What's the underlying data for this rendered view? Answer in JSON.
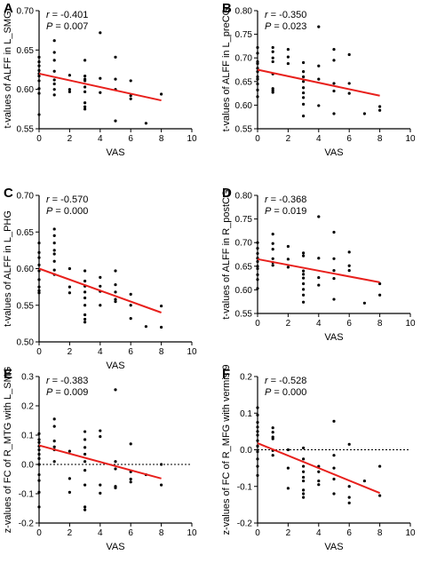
{
  "chart_data": [
    {
      "letter": "A",
      "type": "scatter",
      "xlabel": "VAS",
      "ylabel": "t-values of ALFF in L_SMG",
      "xlim": [
        0,
        10
      ],
      "ylim": [
        0.55,
        0.7
      ],
      "xticks": [
        "0",
        "2",
        "4",
        "6",
        "8",
        "10"
      ],
      "yticks": [
        "0.55",
        "0.60",
        "0.65",
        "0.70"
      ],
      "r_label": "r",
      "r_text": "= -0.401",
      "p_label": "P",
      "p_text": "= 0.007",
      "line": {
        "x": [
          0,
          8
        ],
        "y": [
          0.62,
          0.586
        ],
        "color": "#e8201c"
      },
      "zero_line": null,
      "points": [
        [
          0,
          0.641
        ],
        [
          0,
          0.635
        ],
        [
          0,
          0.63
        ],
        [
          0,
          0.624
        ],
        [
          0,
          0.62
        ],
        [
          0,
          0.617
        ],
        [
          0,
          0.611
        ],
        [
          0,
          0.601
        ],
        [
          0,
          0.595
        ],
        [
          0,
          0.568
        ],
        [
          1,
          0.662
        ],
        [
          1,
          0.647
        ],
        [
          1,
          0.637
        ],
        [
          1,
          0.623
        ],
        [
          1,
          0.612
        ],
        [
          1,
          0.607
        ],
        [
          1,
          0.6
        ],
        [
          1,
          0.593
        ],
        [
          2,
          0.618
        ],
        [
          2,
          0.6
        ],
        [
          2,
          0.597
        ],
        [
          3,
          0.637
        ],
        [
          3,
          0.617
        ],
        [
          3,
          0.613
        ],
        [
          3,
          0.611
        ],
        [
          3,
          0.603
        ],
        [
          3,
          0.597
        ],
        [
          3,
          0.583
        ],
        [
          3,
          0.578
        ],
        [
          3,
          0.575
        ],
        [
          4,
          0.672
        ],
        [
          4,
          0.614
        ],
        [
          4,
          0.596
        ],
        [
          5,
          0.641
        ],
        [
          5,
          0.613
        ],
        [
          5,
          0.6
        ],
        [
          5,
          0.56
        ],
        [
          6,
          0.611
        ],
        [
          6,
          0.592
        ],
        [
          6,
          0.588
        ],
        [
          7,
          0.557
        ],
        [
          8,
          0.594
        ]
      ]
    },
    {
      "letter": "B",
      "type": "scatter",
      "xlabel": "VAS",
      "ylabel": "t-values of ALFF in L_preCG",
      "xlim": [
        0,
        10
      ],
      "ylim": [
        0.55,
        0.8
      ],
      "xticks": [
        "0",
        "2",
        "4",
        "6",
        "8",
        "10"
      ],
      "yticks": [
        "0.55",
        "0.60",
        "0.65",
        "0.70",
        "0.75",
        "0.80"
      ],
      "r_label": "r",
      "r_text": "= -0.350",
      "p_label": "P",
      "p_text": "= 0.023",
      "line": {
        "x": [
          0,
          8
        ],
        "y": [
          0.675,
          0.62
        ],
        "color": "#e8201c"
      },
      "zero_line": null,
      "points": [
        [
          0,
          0.722
        ],
        [
          0,
          0.71
        ],
        [
          0,
          0.692
        ],
        [
          0,
          0.688
        ],
        [
          0,
          0.678
        ],
        [
          0,
          0.671
        ],
        [
          0,
          0.66
        ],
        [
          0,
          0.655
        ],
        [
          0,
          0.645
        ],
        [
          0,
          0.632
        ],
        [
          0,
          0.618
        ],
        [
          1,
          0.722
        ],
        [
          1,
          0.713
        ],
        [
          1,
          0.7
        ],
        [
          1,
          0.692
        ],
        [
          1,
          0.666
        ],
        [
          1,
          0.635
        ],
        [
          1,
          0.631
        ],
        [
          1,
          0.627
        ],
        [
          2,
          0.718
        ],
        [
          2,
          0.702
        ],
        [
          2,
          0.688
        ],
        [
          3,
          0.69
        ],
        [
          3,
          0.671
        ],
        [
          3,
          0.66
        ],
        [
          3,
          0.65
        ],
        [
          3,
          0.637
        ],
        [
          3,
          0.626
        ],
        [
          3,
          0.616
        ],
        [
          3,
          0.602
        ],
        [
          3,
          0.577
        ],
        [
          4,
          0.766
        ],
        [
          4,
          0.683
        ],
        [
          4,
          0.655
        ],
        [
          4,
          0.599
        ],
        [
          5,
          0.718
        ],
        [
          5,
          0.695
        ],
        [
          5,
          0.646
        ],
        [
          5,
          0.63
        ],
        [
          5,
          0.582
        ],
        [
          6,
          0.707
        ],
        [
          6,
          0.646
        ],
        [
          6,
          0.625
        ],
        [
          7,
          0.582
        ],
        [
          8,
          0.597
        ],
        [
          8,
          0.589
        ]
      ]
    },
    {
      "letter": "C",
      "type": "scatter",
      "xlabel": "VAS",
      "ylabel": "t-values of ALFF in L_PHG",
      "xlim": [
        0,
        10
      ],
      "ylim": [
        0.5,
        0.7
      ],
      "xticks": [
        "0",
        "2",
        "4",
        "6",
        "8",
        "10"
      ],
      "yticks": [
        "0.50",
        "0.55",
        "0.60",
        "0.65",
        "0.70"
      ],
      "r_label": "r",
      "r_text": "= -0.570",
      "p_label": "P",
      "p_text": "= 0.000",
      "line": {
        "x": [
          0,
          8
        ],
        "y": [
          0.6,
          0.54
        ],
        "color": "#e8201c"
      },
      "zero_line": null,
      "points": [
        [
          0,
          0.635
        ],
        [
          0,
          0.622
        ],
        [
          0,
          0.615
        ],
        [
          0,
          0.605
        ],
        [
          0,
          0.597
        ],
        [
          0,
          0.585
        ],
        [
          0,
          0.575
        ],
        [
          0,
          0.57
        ],
        [
          0,
          0.567
        ],
        [
          1,
          0.654
        ],
        [
          1,
          0.645
        ],
        [
          1,
          0.635
        ],
        [
          1,
          0.625
        ],
        [
          1,
          0.62
        ],
        [
          1,
          0.61
        ],
        [
          1,
          0.598
        ],
        [
          1,
          0.592
        ],
        [
          2,
          0.6
        ],
        [
          2,
          0.575
        ],
        [
          2,
          0.567
        ],
        [
          3,
          0.597
        ],
        [
          3,
          0.583
        ],
        [
          3,
          0.576
        ],
        [
          3,
          0.568
        ],
        [
          3,
          0.56
        ],
        [
          3,
          0.55
        ],
        [
          3,
          0.537
        ],
        [
          3,
          0.531
        ],
        [
          3,
          0.527
        ],
        [
          4,
          0.588
        ],
        [
          4,
          0.576
        ],
        [
          4,
          0.569
        ],
        [
          4,
          0.55
        ],
        [
          5,
          0.597
        ],
        [
          5,
          0.578
        ],
        [
          5,
          0.568
        ],
        [
          5,
          0.558
        ],
        [
          5,
          0.555
        ],
        [
          6,
          0.565
        ],
        [
          6,
          0.55
        ],
        [
          6,
          0.532
        ],
        [
          7,
          0.521
        ],
        [
          8,
          0.549
        ],
        [
          8,
          0.52
        ]
      ]
    },
    {
      "letter": "D",
      "type": "scatter",
      "xlabel": "VAS",
      "ylabel": "t-values of ALFF in R_postCG",
      "xlim": [
        0,
        10
      ],
      "ylim": [
        0.55,
        0.8
      ],
      "xticks": [
        "0",
        "2",
        "4",
        "6",
        "8",
        "10"
      ],
      "yticks": [
        "0.55",
        "0.60",
        "0.65",
        "0.70",
        "0.75",
        "0.80"
      ],
      "r_label": "r",
      "r_text": "= -0.368",
      "p_label": "P",
      "p_text": "= 0.019",
      "line": {
        "x": [
          0,
          8
        ],
        "y": [
          0.665,
          0.616
        ],
        "color": "#e8201c"
      },
      "zero_line": null,
      "points": [
        [
          0,
          0.7
        ],
        [
          0,
          0.688
        ],
        [
          0,
          0.677
        ],
        [
          0,
          0.667
        ],
        [
          0,
          0.66
        ],
        [
          0,
          0.65
        ],
        [
          0,
          0.645
        ],
        [
          0,
          0.632
        ],
        [
          0,
          0.622
        ],
        [
          0,
          0.603
        ],
        [
          1,
          0.718
        ],
        [
          1,
          0.698
        ],
        [
          1,
          0.686
        ],
        [
          1,
          0.666
        ],
        [
          1,
          0.658
        ],
        [
          1,
          0.652
        ],
        [
          2,
          0.692
        ],
        [
          2,
          0.665
        ],
        [
          2,
          0.648
        ],
        [
          3,
          0.678
        ],
        [
          3,
          0.672
        ],
        [
          3,
          0.64
        ],
        [
          3,
          0.633
        ],
        [
          3,
          0.625
        ],
        [
          3,
          0.613
        ],
        [
          3,
          0.601
        ],
        [
          3,
          0.589
        ],
        [
          3,
          0.574
        ],
        [
          4,
          0.755
        ],
        [
          4,
          0.667
        ],
        [
          4,
          0.626
        ],
        [
          4,
          0.61
        ],
        [
          5,
          0.722
        ],
        [
          5,
          0.666
        ],
        [
          5,
          0.641
        ],
        [
          5,
          0.624
        ],
        [
          5,
          0.58
        ],
        [
          6,
          0.68
        ],
        [
          6,
          0.651
        ],
        [
          6,
          0.641
        ],
        [
          7,
          0.572
        ],
        [
          8,
          0.613
        ],
        [
          8,
          0.589
        ]
      ]
    },
    {
      "letter": "E",
      "type": "scatter",
      "xlabel": "VAS",
      "ylabel": "z-values of FC of R_MTG with L_SMG",
      "xlim": [
        0,
        10
      ],
      "ylim": [
        -0.2,
        0.3
      ],
      "xticks": [
        "0",
        "2",
        "4",
        "6",
        "8",
        "10"
      ],
      "yticks": [
        "-0.2",
        "-0.1",
        "0.0",
        "0.1",
        "0.2",
        "0.3"
      ],
      "r_label": "r",
      "r_text": "= -0.383",
      "p_label": "P",
      "p_text": "= 0.009",
      "line": {
        "x": [
          0,
          8
        ],
        "y": [
          0.065,
          -0.048
        ],
        "color": "#e8201c"
      },
      "zero_line": 0,
      "points": [
        [
          0,
          0.105
        ],
        [
          0,
          0.085
        ],
        [
          0,
          0.075
        ],
        [
          0,
          0.062
        ],
        [
          0,
          0.05
        ],
        [
          0,
          0.035
        ],
        [
          0,
          0.02
        ],
        [
          0,
          0.0
        ],
        [
          0,
          -0.035
        ],
        [
          0,
          -0.055
        ],
        [
          0,
          -0.095
        ],
        [
          0,
          -0.145
        ],
        [
          1,
          0.155
        ],
        [
          1,
          0.13
        ],
        [
          1,
          0.08
        ],
        [
          1,
          0.06
        ],
        [
          1,
          0.05
        ],
        [
          1,
          0.01
        ],
        [
          2,
          0.045
        ],
        [
          2,
          -0.048
        ],
        [
          2,
          -0.095
        ],
        [
          3,
          0.112
        ],
        [
          3,
          0.085
        ],
        [
          3,
          0.058
        ],
        [
          3,
          0.035
        ],
        [
          3,
          0.01
        ],
        [
          3,
          -0.02
        ],
        [
          3,
          -0.07
        ],
        [
          3,
          -0.145
        ],
        [
          3,
          -0.155
        ],
        [
          4,
          0.115
        ],
        [
          4,
          0.095
        ],
        [
          4,
          -0.07
        ],
        [
          4,
          -0.098
        ],
        [
          5,
          0.255
        ],
        [
          5,
          0.01
        ],
        [
          5,
          -0.015
        ],
        [
          5,
          -0.075
        ],
        [
          5,
          -0.08
        ],
        [
          6,
          0.07
        ],
        [
          6,
          -0.025
        ],
        [
          6,
          -0.05
        ],
        [
          6,
          -0.06
        ],
        [
          7,
          -0.035
        ],
        [
          8,
          0.0
        ],
        [
          8,
          -0.07
        ]
      ]
    },
    {
      "letter": "F",
      "type": "scatter",
      "xlabel": "VAS",
      "ylabel": "z-values of FC of R_MFG with vermis 9",
      "xlim": [
        0,
        10
      ],
      "ylim": [
        -0.2,
        0.2
      ],
      "xticks": [
        "0",
        "2",
        "4",
        "6",
        "8",
        "10"
      ],
      "yticks": [
        "-0.2",
        "-0.1",
        "0.0",
        "0.1",
        "0.2"
      ],
      "r_label": "r",
      "r_text": "= -0.528",
      "p_label": "P",
      "p_text": "= 0.000",
      "line": {
        "x": [
          0,
          8
        ],
        "y": [
          0.018,
          -0.118
        ],
        "color": "#e8201c"
      },
      "zero_line": 0,
      "points": [
        [
          0,
          0.115
        ],
        [
          0,
          0.095
        ],
        [
          0,
          0.075
        ],
        [
          0,
          0.062
        ],
        [
          0,
          0.05
        ],
        [
          0,
          0.04
        ],
        [
          0,
          0.025
        ],
        [
          0,
          0.01
        ],
        [
          0,
          -0.005
        ],
        [
          0,
          -0.025
        ],
        [
          0,
          -0.045
        ],
        [
          0,
          -0.07
        ],
        [
          1,
          0.06
        ],
        [
          1,
          0.048
        ],
        [
          1,
          0.035
        ],
        [
          1,
          0.03
        ],
        [
          1,
          -0.002
        ],
        [
          1,
          -0.015
        ],
        [
          2,
          0.0
        ],
        [
          2,
          -0.05
        ],
        [
          2,
          -0.105
        ],
        [
          3,
          0.005
        ],
        [
          3,
          -0.025
        ],
        [
          3,
          -0.045
        ],
        [
          3,
          -0.06
        ],
        [
          3,
          -0.075
        ],
        [
          3,
          -0.085
        ],
        [
          3,
          -0.11
        ],
        [
          3,
          -0.12
        ],
        [
          3,
          -0.13
        ],
        [
          4,
          -0.045
        ],
        [
          4,
          -0.06
        ],
        [
          4,
          -0.085
        ],
        [
          4,
          -0.095
        ],
        [
          5,
          0.078
        ],
        [
          5,
          -0.015
        ],
        [
          5,
          -0.05
        ],
        [
          5,
          -0.08
        ],
        [
          5,
          -0.12
        ],
        [
          6,
          0.015
        ],
        [
          6,
          -0.1
        ],
        [
          6,
          -0.13
        ],
        [
          6,
          -0.145
        ],
        [
          7,
          -0.085
        ],
        [
          8,
          -0.045
        ],
        [
          8,
          -0.125
        ]
      ]
    }
  ]
}
